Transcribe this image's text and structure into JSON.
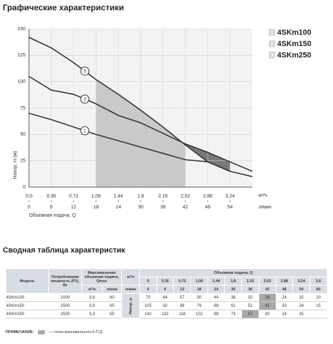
{
  "chart_data": {
    "type": "line",
    "title": "Графические характеристики",
    "y_label": "Напор, Н (м)",
    "x_label": "Объемная подача, Q",
    "x_unit": "м³/ч",
    "x2_unit": "л/мин",
    "x": [
      0,
      0.36,
      0.72,
      1.08,
      1.44,
      1.8,
      2.16,
      2.52,
      2.88,
      3.24,
      3.6
    ],
    "series": [
      {
        "name": "4SKm100",
        "label": "1",
        "color": "#333333",
        "values": [
          70,
          64,
          57,
          50,
          44,
          38,
          32,
          26,
          24,
          15,
          10
        ]
      },
      {
        "name": "4SKm150",
        "label": "2",
        "color": "#333333",
        "values": [
          105,
          92,
          88,
          79,
          68,
          61,
          51,
          41,
          33,
          24,
          15
        ]
      },
      {
        "name": "4SKm250",
        "label": "3",
        "color": "#333333",
        "values": [
          142,
          132,
          118,
          102,
          88,
          73,
          57,
          40,
          24,
          15,
          null
        ]
      }
    ],
    "xlim": [
      0,
      3.6
    ],
    "xticks": [
      {
        "value": 0,
        "label": "0,0"
      },
      {
        "value": 0.36,
        "label": "0,36"
      },
      {
        "value": 0.72,
        "label": "0,72"
      },
      {
        "value": 1.08,
        "label": "1,08"
      },
      {
        "value": 1.44,
        "label": "1,44"
      },
      {
        "value": 1.8,
        "label": "1,8"
      },
      {
        "value": 2.16,
        "label": "2,16"
      },
      {
        "value": 2.52,
        "label": "2,52"
      },
      {
        "value": 2.88,
        "label": "2,88"
      },
      {
        "value": 3.24,
        "label": "3,24"
      }
    ],
    "x2lim": [
      0,
      60
    ],
    "x2ticks": [
      0,
      6,
      12,
      18,
      24,
      30,
      36,
      42,
      48,
      54
    ],
    "ylim": [
      0,
      150
    ],
    "yticks": [
      0,
      25,
      50,
      75,
      100,
      125,
      150
    ],
    "grid": true
  },
  "table": {
    "title": "Сводная таблица характеристик",
    "columns": {
      "model": "Модель",
      "power": "Потребляемая мощность (P1), Вт",
      "qmax": "Максимальная объемная подача, Qmax",
      "flow": "Объемная подача, Q",
      "head": "Напор, м"
    },
    "units": [
      "м³/ч",
      "л/мин"
    ],
    "flow_m3h": [
      "0",
      "0,36",
      "0,72",
      "1,08",
      "1,44",
      "1,8",
      "2,16",
      "2,52",
      "2,88",
      "3,24",
      "3,6"
    ],
    "flow_lmin": [
      "0",
      "6",
      "12",
      "18",
      "24",
      "30",
      "36",
      "42",
      "48",
      "54",
      "60"
    ],
    "rows": [
      [
        "4SKm100",
        "1000",
        "3,6",
        "60",
        "70",
        "64",
        "57",
        "50",
        "44",
        "38",
        "32",
        "26",
        "24",
        "15",
        "10"
      ],
      [
        "4SKm150",
        "1500",
        "3,9",
        "65",
        "105",
        "92",
        "88",
        "79",
        "68",
        "61",
        "51",
        "41",
        "33",
        "24",
        "15"
      ],
      [
        "4SKm250",
        "2500",
        "3,3",
        "55",
        "142",
        "132",
        "118",
        "102",
        "88",
        "73",
        "57",
        "40",
        "24",
        "15"
      ]
    ]
  },
  "note": {
    "label": "ПРИМЕЧАНИЕ:",
    "text": "— точка максимального К.П.Д."
  }
}
